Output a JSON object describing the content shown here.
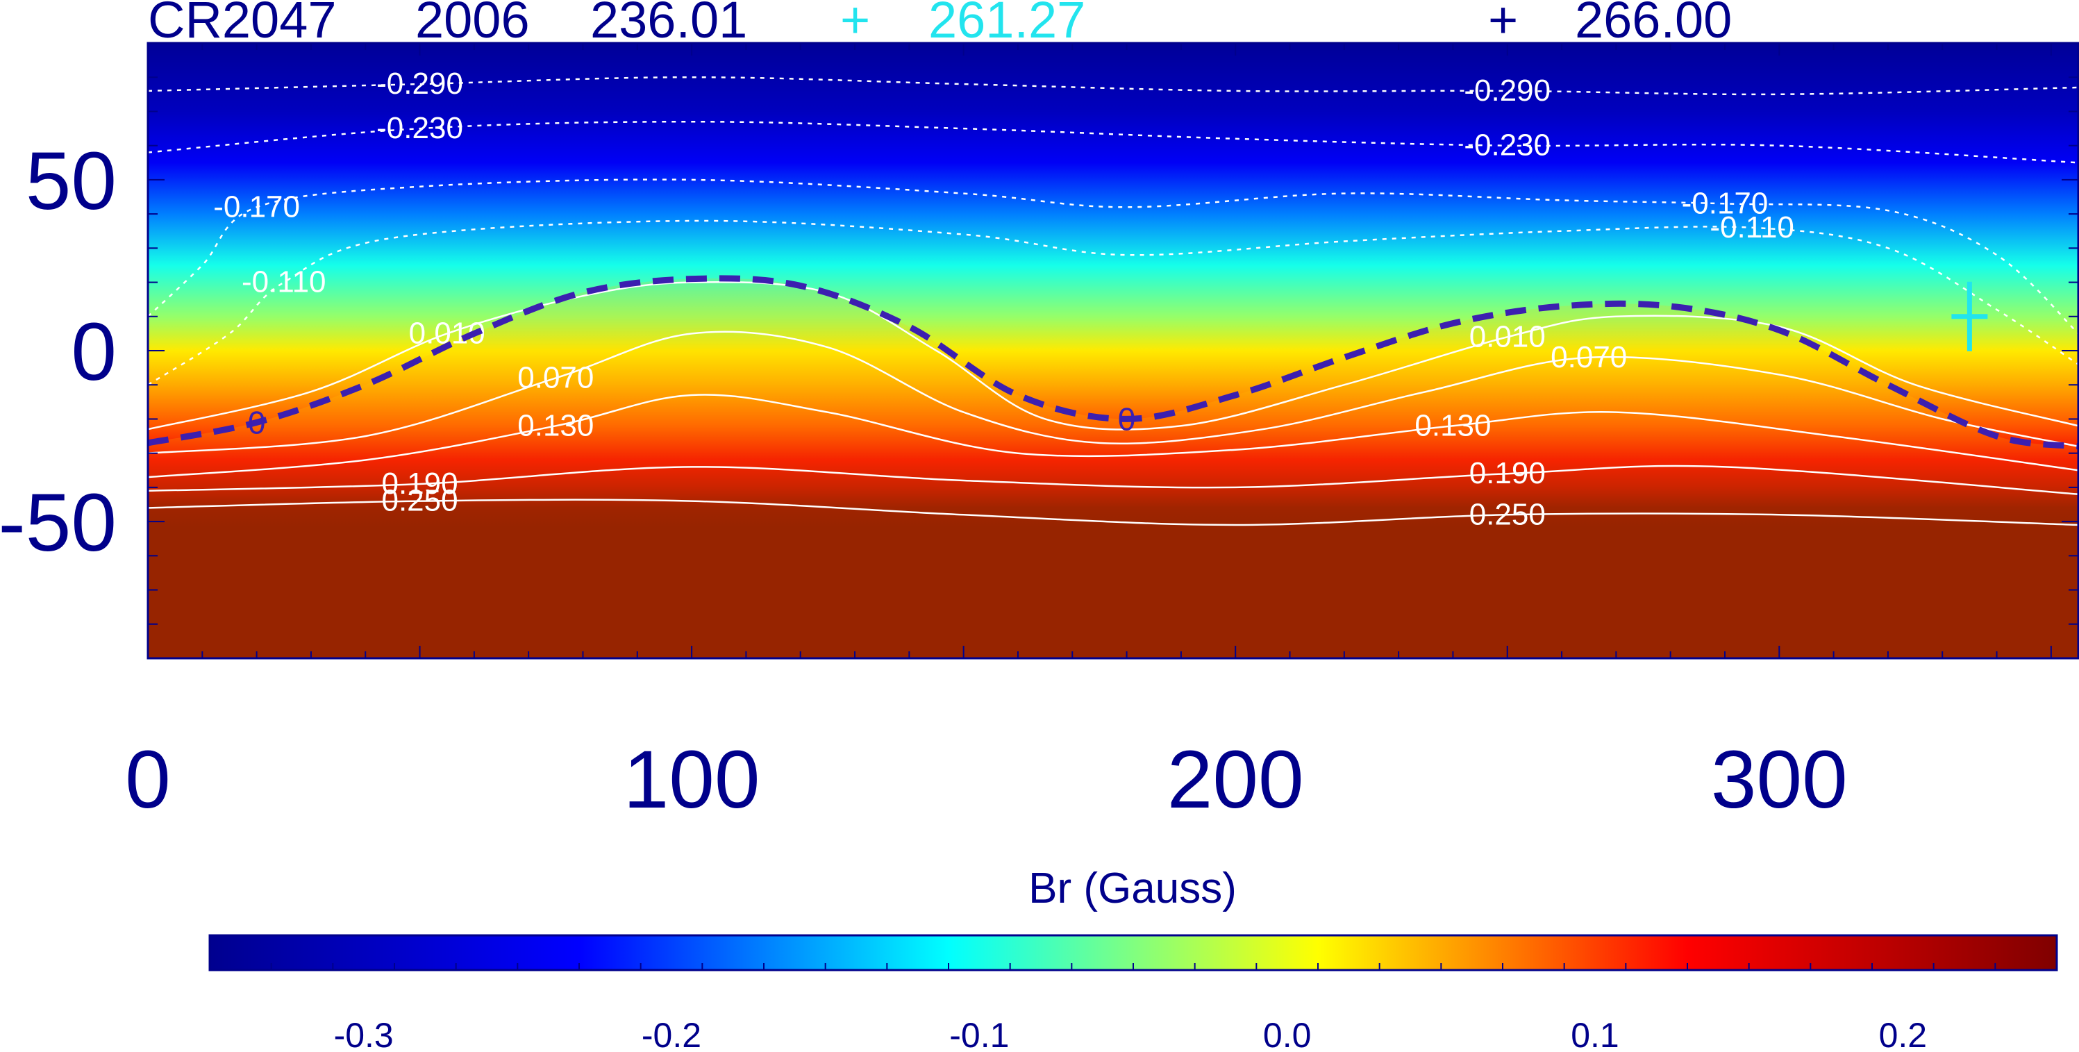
{
  "header": {
    "carrington_rotation": "CR2047",
    "year": "2006",
    "longitude": "236.01",
    "marker_1_symbol": "+",
    "marker_1_longitude": "261.27",
    "marker_2_symbol": "+",
    "marker_2_longitude": "266.00"
  },
  "colors": {
    "axis": "#00008b",
    "marker_1": "#22e4ee",
    "marker_2": "#00008b",
    "neutral_line": "#3c1fb0",
    "contour": "#ffffff",
    "colormap": [
      "#00008f",
      "#0000ff",
      "#00ffff",
      "#ffff00",
      "#ff0000",
      "#800000"
    ]
  },
  "colorbar": {
    "label": "Br (Gauss)",
    "range": [
      -0.35,
      0.25
    ],
    "ticks": [
      -0.3,
      -0.2,
      -0.1,
      0.0,
      0.1,
      0.2
    ],
    "tick_labels": [
      "-0.3",
      "-0.2",
      "-0.1",
      "0.0",
      "0.1",
      "0.2"
    ]
  },
  "chart_data": {
    "type": "heatmap",
    "title": "",
    "xlabel": "",
    "ylabel": "",
    "xlim": [
      0,
      355
    ],
    "ylim": [
      -90,
      90
    ],
    "x_ticks": [
      0,
      100,
      200,
      300
    ],
    "x_tick_labels": [
      "0",
      "100",
      "200",
      "300"
    ],
    "y_ticks": [
      -50,
      0,
      50
    ],
    "y_tick_labels": [
      "-50",
      "0",
      "50"
    ],
    "neutral_line": {
      "label": "0",
      "points": [
        [
          0,
          -27
        ],
        [
          20,
          -21
        ],
        [
          40,
          -10
        ],
        [
          60,
          5
        ],
        [
          80,
          17
        ],
        [
          100,
          21
        ],
        [
          120,
          19
        ],
        [
          140,
          7
        ],
        [
          160,
          -13
        ],
        [
          180,
          -20
        ],
        [
          200,
          -13
        ],
        [
          220,
          -2
        ],
        [
          240,
          8
        ],
        [
          260,
          13
        ],
        [
          280,
          13
        ],
        [
          300,
          6
        ],
        [
          320,
          -10
        ],
        [
          340,
          -25
        ],
        [
          355,
          -28
        ]
      ]
    },
    "contours": [
      {
        "label": "-0.290",
        "points": [
          [
            0,
            76
          ],
          [
            50,
            78
          ],
          [
            100,
            80
          ],
          [
            150,
            78
          ],
          [
            200,
            76
          ],
          [
            250,
            76
          ],
          [
            300,
            75
          ],
          [
            355,
            77
          ]
        ]
      },
      {
        "label": "-0.230",
        "points": [
          [
            0,
            58
          ],
          [
            50,
            65
          ],
          [
            100,
            67
          ],
          [
            150,
            65
          ],
          [
            200,
            62
          ],
          [
            250,
            60
          ],
          [
            300,
            60
          ],
          [
            355,
            55
          ]
        ]
      },
      {
        "label": "-0.170",
        "points": [
          [
            0,
            10
          ],
          [
            10,
            25
          ],
          [
            20,
            42
          ],
          [
            50,
            48
          ],
          [
            100,
            50
          ],
          [
            150,
            46
          ],
          [
            180,
            42
          ],
          [
            220,
            46
          ],
          [
            260,
            44
          ],
          [
            290,
            43
          ],
          [
            320,
            41
          ],
          [
            340,
            28
          ],
          [
            355,
            5
          ]
        ]
      },
      {
        "label": "-0.110",
        "points": [
          [
            0,
            -10
          ],
          [
            15,
            5
          ],
          [
            25,
            20
          ],
          [
            45,
            33
          ],
          [
            100,
            38
          ],
          [
            150,
            34
          ],
          [
            180,
            28
          ],
          [
            220,
            32
          ],
          [
            260,
            35
          ],
          [
            295,
            36
          ],
          [
            320,
            30
          ],
          [
            340,
            12
          ],
          [
            355,
            -4
          ]
        ]
      },
      {
        "label": "0.010",
        "points": [
          [
            0,
            -23
          ],
          [
            30,
            -12
          ],
          [
            55,
            5
          ],
          [
            80,
            16
          ],
          [
            100,
            20
          ],
          [
            125,
            17
          ],
          [
            145,
            0
          ],
          [
            165,
            -20
          ],
          [
            190,
            -22
          ],
          [
            220,
            -10
          ],
          [
            250,
            4
          ],
          [
            270,
            10
          ],
          [
            300,
            7
          ],
          [
            325,
            -10
          ],
          [
            355,
            -22
          ]
        ]
      },
      {
        "label": "0.070",
        "points": [
          [
            0,
            -30
          ],
          [
            40,
            -25
          ],
          [
            75,
            -8
          ],
          [
            100,
            5
          ],
          [
            125,
            1
          ],
          [
            150,
            -18
          ],
          [
            175,
            -27
          ],
          [
            205,
            -23
          ],
          [
            235,
            -12
          ],
          [
            265,
            -2
          ],
          [
            300,
            -7
          ],
          [
            330,
            -20
          ],
          [
            355,
            -28
          ]
        ]
      },
      {
        "label": "0.130",
        "points": [
          [
            0,
            -37
          ],
          [
            40,
            -32
          ],
          [
            75,
            -22
          ],
          [
            100,
            -13
          ],
          [
            125,
            -18
          ],
          [
            160,
            -30
          ],
          [
            200,
            -29
          ],
          [
            240,
            -22
          ],
          [
            270,
            -18
          ],
          [
            310,
            -25
          ],
          [
            355,
            -35
          ]
        ]
      },
      {
        "label": "0.190",
        "points": [
          [
            0,
            -41
          ],
          [
            50,
            -39
          ],
          [
            100,
            -34
          ],
          [
            150,
            -38
          ],
          [
            200,
            -40
          ],
          [
            250,
            -36
          ],
          [
            290,
            -34
          ],
          [
            355,
            -42
          ]
        ]
      },
      {
        "label": "0.250",
        "points": [
          [
            0,
            -46
          ],
          [
            50,
            -44
          ],
          [
            100,
            -44
          ],
          [
            150,
            -48
          ],
          [
            200,
            -51
          ],
          [
            250,
            -48
          ],
          [
            300,
            -48
          ],
          [
            355,
            -51
          ]
        ]
      }
    ],
    "markers": [
      {
        "longitude": 335,
        "latitude": 10,
        "symbol": "+"
      }
    ]
  }
}
